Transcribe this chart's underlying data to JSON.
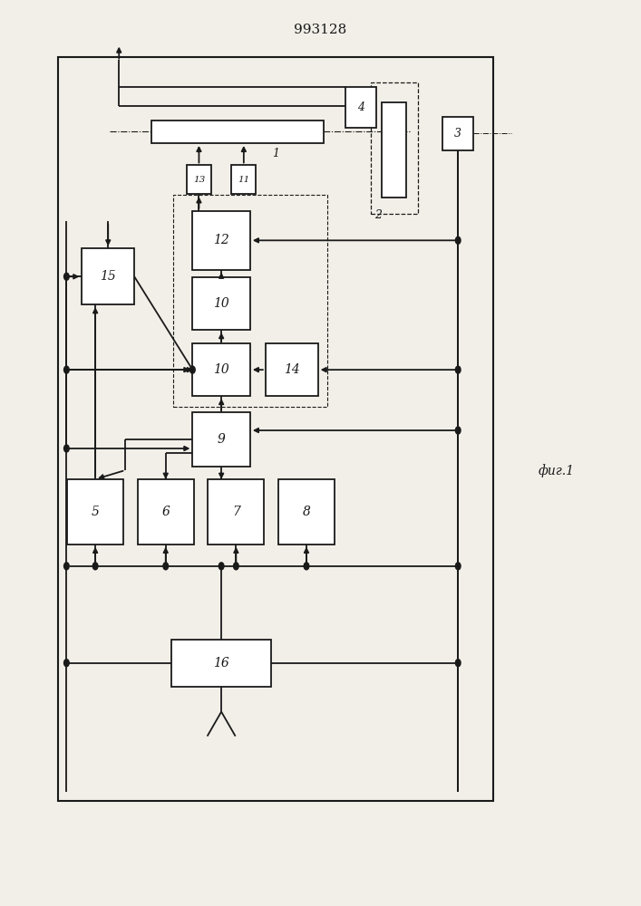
{
  "title": "993128",
  "fig_label": "фиг.1",
  "bg": "#f2efe8",
  "lc": "#1a1a1a",
  "lw": 1.3
}
